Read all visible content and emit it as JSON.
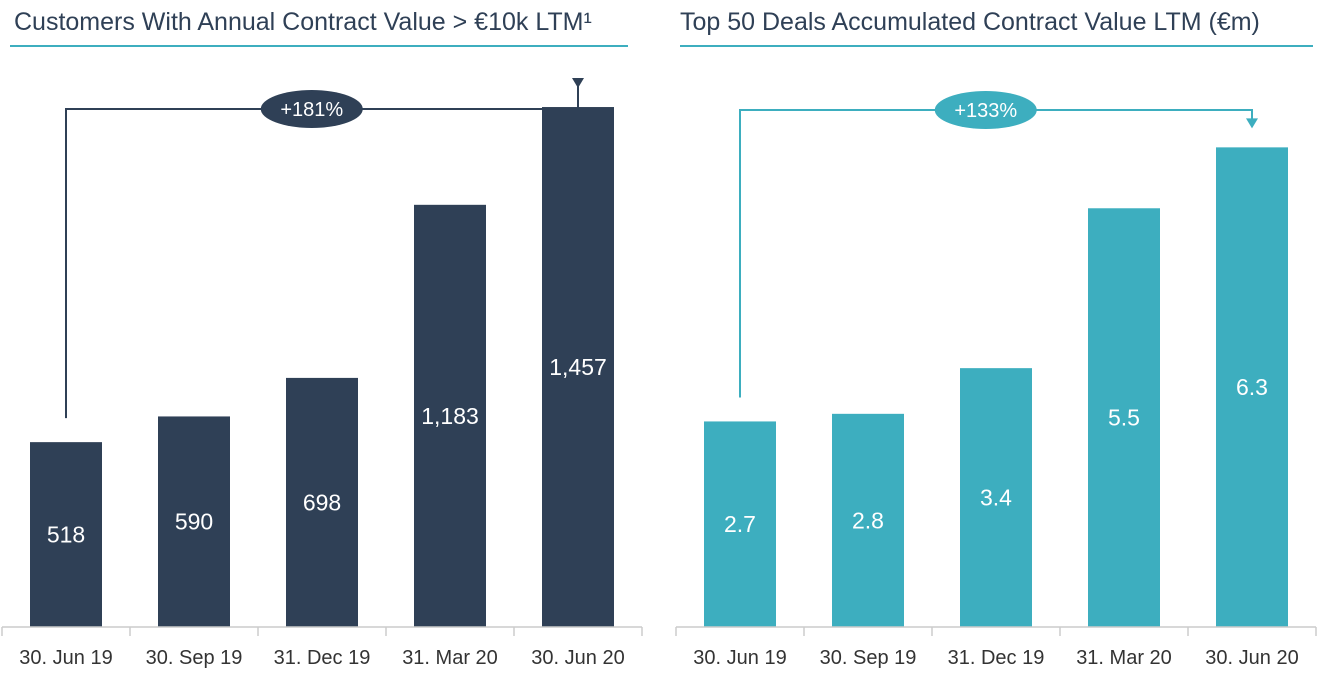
{
  "chart_data": [
    {
      "type": "bar",
      "title": "Customers With Annual Contract Value > €10k LTM¹",
      "categories": [
        "30. Jun 19",
        "30. Sep 19",
        "31. Dec 19",
        "31. Mar 20",
        "30. Jun 20"
      ],
      "values": [
        518,
        590,
        698,
        1183,
        1457
      ],
      "value_labels": [
        "518",
        "590",
        "698",
        "1,183",
        "1,457"
      ],
      "growth_label": "+181%",
      "color": "#2f4056",
      "ylim": [
        0,
        1600
      ],
      "grid": false,
      "legend": "none"
    },
    {
      "type": "bar",
      "title": "Top 50 Deals Accumulated Contract Value LTM (€m)",
      "categories": [
        "30. Jun 19",
        "30. Sep 19",
        "31. Dec 19",
        "31. Mar 20",
        "30. Jun 20"
      ],
      "values": [
        2.7,
        2.8,
        3.4,
        5.5,
        6.3
      ],
      "value_labels": [
        "2.7",
        "2.8",
        "3.4",
        "5.5",
        "6.3"
      ],
      "growth_label": "+133%",
      "color": "#3daebf",
      "ylim": [
        0,
        7.5
      ],
      "grid": false,
      "legend": "none"
    }
  ],
  "colors": {
    "title_text": "#2f4056",
    "title_rule": "#3daebf",
    "axis": "#cccccc"
  }
}
